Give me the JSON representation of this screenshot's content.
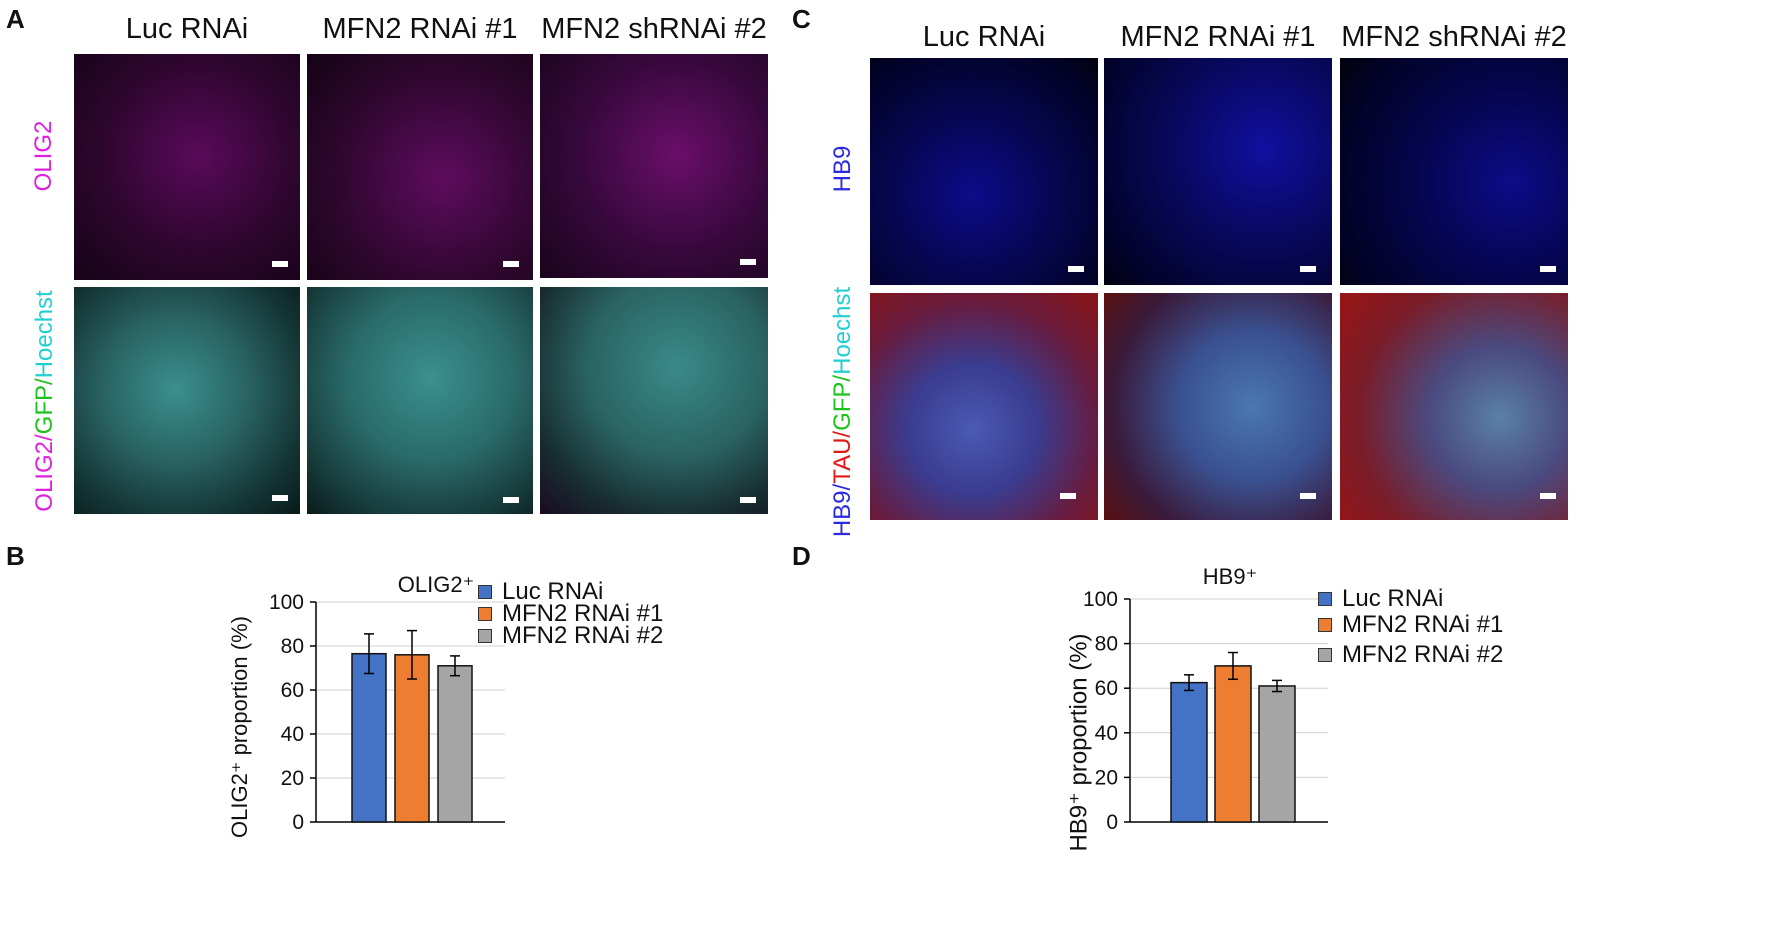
{
  "panels": {
    "A": {
      "letter": "A",
      "columns": [
        "Luc RNAi",
        "MFN2 RNAi #1",
        "MFN2 shRNAi #2"
      ],
      "row1_label": "OLIG2",
      "row2_label": [
        {
          "text": "OLIG2",
          "color": "#e020e0"
        },
        {
          "text": "/",
          "color": "#e020e0"
        },
        {
          "text": "GFP",
          "color": "#1cc31c"
        },
        {
          "text": "/",
          "color": "#1cc31c"
        },
        {
          "text": "Hoechst",
          "color": "#20d0d0"
        }
      ]
    },
    "B": {
      "letter": "B"
    },
    "C": {
      "letter": "C",
      "columns": [
        "Luc RNAi",
        "MFN2 RNAi #1",
        "MFN2 shRNAi #2"
      ],
      "row1_label": "HB9",
      "row2_label": [
        {
          "text": "HB9",
          "color": "#2a2ae0"
        },
        {
          "text": "/",
          "color": "#2a2ae0"
        },
        {
          "text": "TAU",
          "color": "#e01818"
        },
        {
          "text": "/",
          "color": "#e01818"
        },
        {
          "text": "GFP",
          "color": "#1cc31c"
        },
        {
          "text": "/",
          "color": "#1cc31c"
        },
        {
          "text": "Hoechst",
          "color": "#20d0d0"
        }
      ]
    },
    "D": {
      "letter": "D"
    }
  },
  "colors": {
    "olig2": "#e020e0",
    "hb9": "#2a2ae0",
    "luc": "#4472c4",
    "mfn2_1": "#ed7d31",
    "mfn2_2": "#a5a5a5"
  },
  "chart_data": [
    {
      "type": "bar",
      "panel": "B",
      "title": "OLIG2⁺",
      "ylabel": "OLIG2⁺ proportion (%)",
      "xlabel": "",
      "ylim": [
        0,
        100
      ],
      "yticks": [
        "0",
        "20",
        "40",
        "60",
        "80",
        "100"
      ],
      "grid": true,
      "legend_position": "top-right",
      "series": [
        {
          "name": "Luc RNAi",
          "value": 76.5,
          "error": 9,
          "color": "#4472c4"
        },
        {
          "name": "MFN2 RNAi #1",
          "value": 76,
          "error": 11,
          "color": "#ed7d31"
        },
        {
          "name": "MFN2 RNAi #2",
          "value": 71,
          "error": 4.5,
          "color": "#a5a5a5"
        }
      ]
    },
    {
      "type": "bar",
      "panel": "D",
      "title": "HB9⁺",
      "ylabel": "HB9⁺ proportion (%)",
      "xlabel": "",
      "ylim": [
        0,
        100
      ],
      "yticks": [
        "0",
        "20",
        "40",
        "60",
        "80",
        "100"
      ],
      "grid": true,
      "legend_position": "top-right",
      "series": [
        {
          "name": "Luc RNAi",
          "value": 62.5,
          "error": 3.5,
          "color": "#4472c4"
        },
        {
          "name": "MFN2 RNAi #1",
          "value": 70,
          "error": 6,
          "color": "#ed7d31"
        },
        {
          "name": "MFN2 RNAi #2",
          "value": 61,
          "error": 2.5,
          "color": "#a5a5a5"
        }
      ]
    }
  ]
}
